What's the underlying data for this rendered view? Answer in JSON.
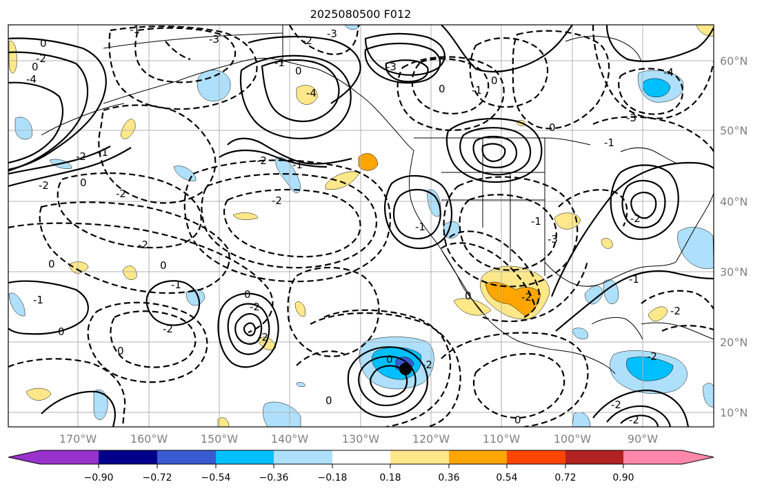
{
  "map": {
    "title": "2025080500 F012",
    "lon_labels": [
      "170°W",
      "160°W",
      "150°W",
      "140°W",
      "130°W",
      "120°W",
      "110°W",
      "100°W",
      "90°W"
    ],
    "lat_labels": [
      "60°N",
      "50°N",
      "40°N",
      "30°N",
      "20°N",
      "10°N"
    ],
    "contour_labels": [
      "0",
      "-2",
      "-4",
      "0",
      "-3",
      "-2",
      "-3",
      "-1",
      "-1",
      "0",
      "-2",
      "-2",
      "-2",
      "-2",
      "-3",
      "-4",
      "0",
      "-1",
      "0",
      "-2",
      "-1",
      "0",
      "-1",
      "-1",
      "0",
      "-2",
      "-3",
      "-1",
      "0",
      "0",
      "0",
      "0",
      "-1",
      "-2",
      "-1",
      "-2",
      "0",
      "-2",
      "-2",
      "0",
      "-3",
      "-1",
      "-4",
      "0",
      "-2",
      "0",
      "-2",
      "-2",
      "-1",
      "-2",
      "-2",
      "-2",
      "0"
    ],
    "colors": {
      "frame": "#000000",
      "grid": "#b0b0b0",
      "tick_text": "#808080",
      "marker": "#000000"
    },
    "colorbar": {
      "tick_labels": [
        "−0.90",
        "−0.72",
        "−0.54",
        "−0.36",
        "−0.18",
        "0.18",
        "0.36",
        "0.54",
        "0.72",
        "0.90"
      ],
      "colors": [
        "#9932cc",
        "#00008b",
        "#3a5bd0",
        "#00bfff",
        "#aee0fb",
        "#ffffff",
        "#ffe88a",
        "#ffa500",
        "#ff4500",
        "#b22222",
        "#ff88aa"
      ]
    }
  }
}
